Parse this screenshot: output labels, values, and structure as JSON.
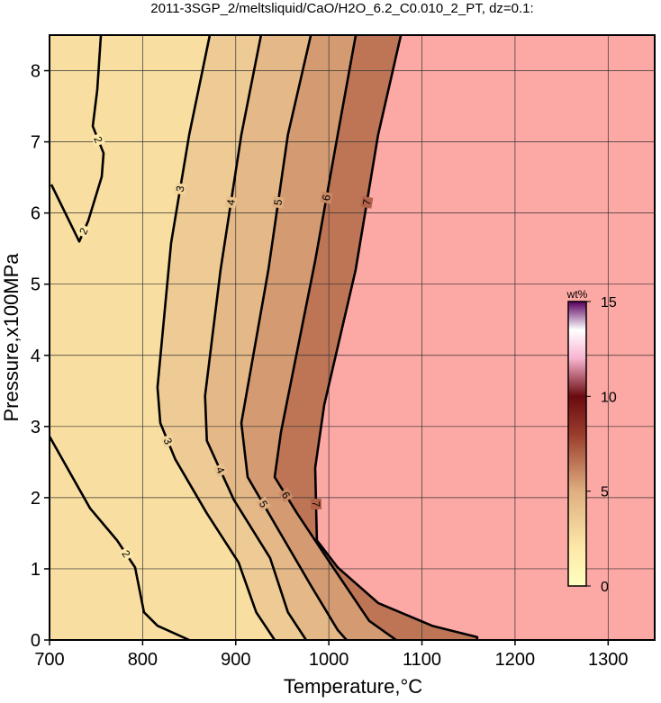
{
  "chart_data": {
    "type": "contour",
    "title": "2011-3SGP_2/meltsliquid/CaO/H2O_6.2_C0.010_2_PT, dz=0.1:",
    "x_label": "Temperature,°C",
    "y_label": "Pressure,x100MPa",
    "xlim": [
      700,
      1350
    ],
    "ylim": [
      0,
      8.5
    ],
    "xticks": [
      700,
      800,
      900,
      1000,
      1100,
      1200,
      1300
    ],
    "yticks": [
      0,
      1,
      2,
      3,
      4,
      5,
      6,
      7,
      8
    ],
    "grid": true,
    "nodata_color": "#fca8a4",
    "contours": [
      {
        "level": 2,
        "x": [
          701.9,
          731.9,
          741.6,
          756.1,
          758,
          746.4,
          751.3,
          755.1,
          null,
          700,
          743.5,
          772.5,
          791.9,
          801.5,
          816,
          850
        ],
        "y": [
          6.4,
          5.6,
          5.89,
          6.51,
          6.84,
          7.22,
          7.73,
          8.49,
          null,
          2.86,
          1.85,
          1.4,
          1.02,
          0.39,
          0.2,
          0
        ]
      },
      {
        "level": 3,
        "x": [
          872,
          850,
          830.6,
          816,
          819,
          835,
          869,
          903,
          922,
          941.8
        ],
        "y": [
          8.49,
          7.1,
          5.58,
          3.55,
          3.05,
          2.54,
          1.78,
          1.09,
          0.39,
          0
        ]
      },
      {
        "level": 4,
        "x": [
          927,
          906,
          883.7,
          867,
          869,
          898,
          937,
          956,
          975.6
        ],
        "y": [
          8.49,
          7.1,
          5.2,
          3.43,
          2.8,
          1.97,
          1.15,
          0.39,
          0
        ]
      },
      {
        "level": 5,
        "x": [
          980.5,
          956,
          935,
          906,
          912.8,
          946.6,
          980.5,
          1009.5,
          1019
        ],
        "y": [
          8.49,
          7.1,
          5.2,
          3.05,
          2.29,
          1.53,
          0.77,
          0.14,
          0
        ]
      },
      {
        "level": 6,
        "x": [
          1028.8,
          1009.5,
          985.3,
          948.6,
          941.8,
          965.9,
          1004.6,
          1043.3,
          1072.3
        ],
        "y": [
          8.49,
          7.1,
          5.33,
          2.92,
          2.29,
          1.78,
          1.02,
          0.27,
          0
        ]
      },
      {
        "level": 7,
        "x": [
          1077.2,
          1053,
          1028.8,
          995,
          985.3,
          987.2,
          1009.5,
          1053,
          1111,
          1159.4,
          1159.4
        ],
        "y": [
          8.49,
          7.1,
          5.2,
          3.3,
          2.42,
          1.4,
          1.02,
          0.52,
          0.2,
          0.04,
          0
        ]
      }
    ],
    "colorbar": {
      "label": "wt%",
      "lim": [
        0,
        15
      ],
      "ticks": [
        0,
        5,
        10,
        15
      ],
      "colormap": [
        {
          "value": 0,
          "color": "#ffffc0"
        },
        {
          "value": 2,
          "color": "#fde8a8"
        },
        {
          "value": 5,
          "color": "#dfae80"
        },
        {
          "value": 8,
          "color": "#9a3c2c"
        },
        {
          "value": 10,
          "color": "#6a0a10"
        },
        {
          "value": 12,
          "color": "#f8b4d0"
        },
        {
          "value": 13.5,
          "color": "#ffffff"
        },
        {
          "value": 15,
          "color": "#5a0060"
        }
      ]
    }
  }
}
